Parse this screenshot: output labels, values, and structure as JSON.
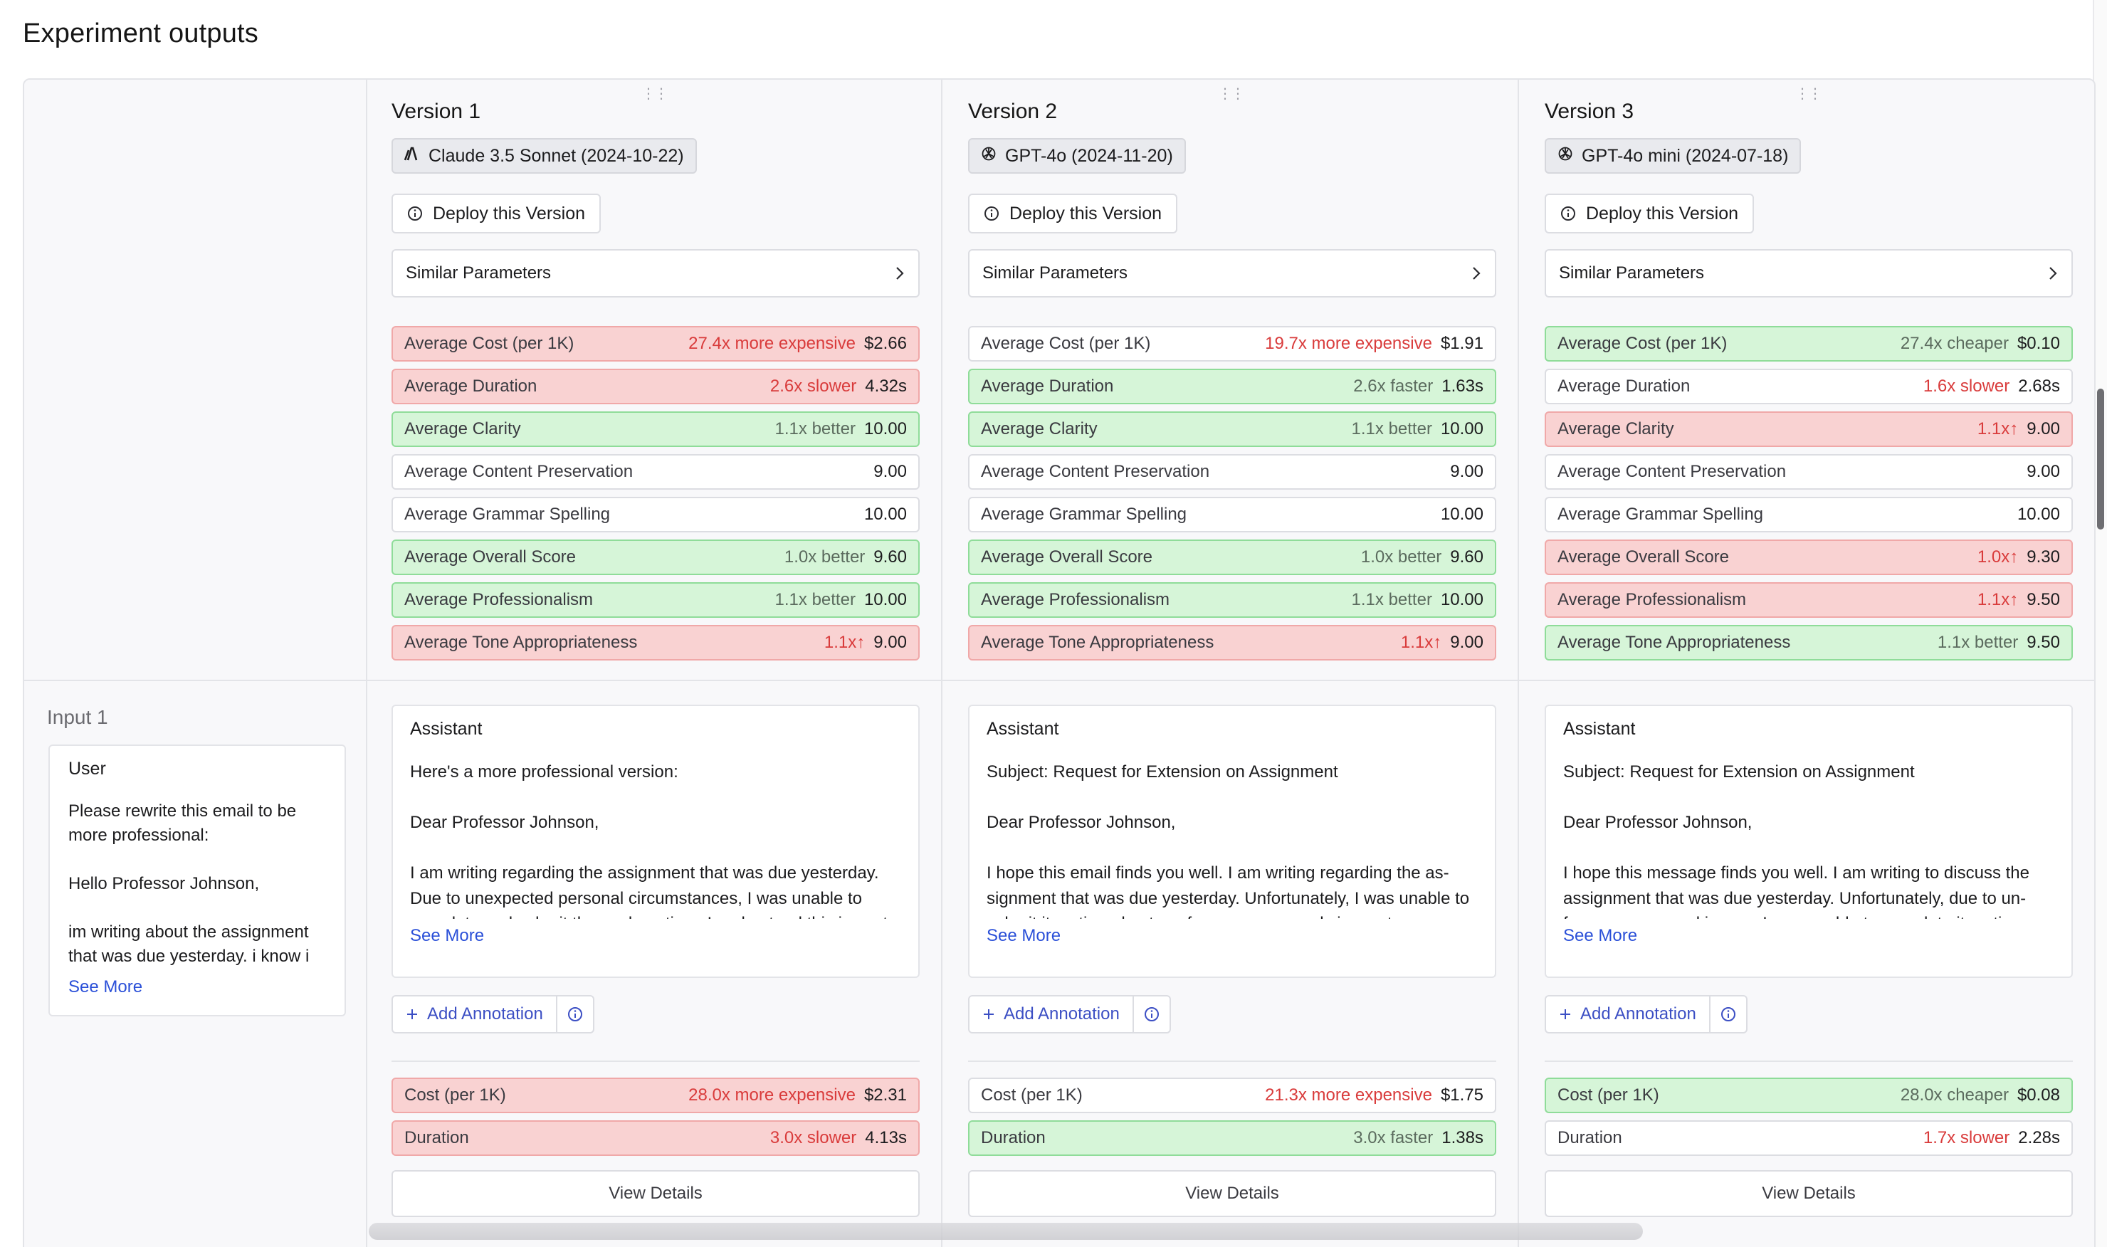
{
  "page": {
    "title": "Experiment outputs"
  },
  "input": {
    "label": "Input 1",
    "role": "User",
    "text": "Please rewrite this email to be more professional:\n\nHello Professor Johnson,\n\nim writing about the assignment that was due yesterday. i know i",
    "see_more": "See More"
  },
  "versions": [
    {
      "title": "Version 1",
      "model": "Claude 3.5 Sonnet (2024-10-22)",
      "model_icon": "anthropic-icon",
      "deploy_label": "Deploy this Version",
      "similar_label": "Similar Parameters",
      "metrics": [
        {
          "label": "Average Cost (per 1K)",
          "cmp": "27.4x more expensive",
          "value": "$2.66",
          "status": "red"
        },
        {
          "label": "Average Duration",
          "cmp": "2.6x slower",
          "value": "4.32s",
          "status": "red"
        },
        {
          "label": "Average Clarity",
          "cmp": "1.1x better",
          "value": "10.00",
          "status": "green"
        },
        {
          "label": "Average Content Preservation",
          "cmp": "",
          "value": "9.00",
          "status": "neutral"
        },
        {
          "label": "Average Grammar Spelling",
          "cmp": "",
          "value": "10.00",
          "status": "neutral"
        },
        {
          "label": "Average Overall Score",
          "cmp": "1.0x better",
          "value": "9.60",
          "status": "green"
        },
        {
          "label": "Average Professionalism",
          "cmp": "1.1x better",
          "value": "10.00",
          "status": "green"
        },
        {
          "label": "Average Tone Appropriateness",
          "cmp": "1.1x↑",
          "value": "9.00",
          "status": "red"
        }
      ],
      "output": {
        "role": "Assistant",
        "text": "Here's a more professional version:\n\nDear Professor Johnson,\n\nI am writing regarding the assignment that was due yesterday. Due to unexpected personal circumstances, I was unable to complete and submit the work on time. I understand this is past",
        "see_more": "See More",
        "annotation_label": "Add Annotation",
        "metrics": [
          {
            "label": "Cost (per 1K)",
            "cmp": "28.0x more expensive",
            "value": "$2.31",
            "status": "red"
          },
          {
            "label": "Duration",
            "cmp": "3.0x slower",
            "value": "4.13s",
            "status": "red"
          }
        ],
        "details_label": "View Details"
      }
    },
    {
      "title": "Version 2",
      "model": "GPT-4o (2024-11-20)",
      "model_icon": "openai-icon",
      "deploy_label": "Deploy this Version",
      "similar_label": "Similar Parameters",
      "metrics": [
        {
          "label": "Average Cost (per 1K)",
          "cmp": "19.7x more expensive",
          "value": "$1.91",
          "status": "neutral-red"
        },
        {
          "label": "Average Duration",
          "cmp": "2.6x faster",
          "value": "1.63s",
          "status": "green"
        },
        {
          "label": "Average Clarity",
          "cmp": "1.1x better",
          "value": "10.00",
          "status": "green"
        },
        {
          "label": "Average Content Preservation",
          "cmp": "",
          "value": "9.00",
          "status": "neutral"
        },
        {
          "label": "Average Grammar Spelling",
          "cmp": "",
          "value": "10.00",
          "status": "neutral"
        },
        {
          "label": "Average Overall Score",
          "cmp": "1.0x better",
          "value": "9.60",
          "status": "green"
        },
        {
          "label": "Average Professionalism",
          "cmp": "1.1x better",
          "value": "10.00",
          "status": "green"
        },
        {
          "label": "Average Tone Appropriateness",
          "cmp": "1.1x↑",
          "value": "9.00",
          "status": "red"
        }
      ],
      "output": {
        "role": "Assistant",
        "text": "Subject: Request for Extension on Assignment\n\nDear Professor Johnson,\n\nI hope this email finds you well. I am writing regarding the as-signment that was due yesterday. Unfortunately, I was unable to submit it on time due to unforeseen personal circumstances",
        "see_more": "See More",
        "annotation_label": "Add Annotation",
        "metrics": [
          {
            "label": "Cost (per 1K)",
            "cmp": "21.3x more expensive",
            "value": "$1.75",
            "status": "neutral-red"
          },
          {
            "label": "Duration",
            "cmp": "3.0x faster",
            "value": "1.38s",
            "status": "green"
          }
        ],
        "details_label": "View Details"
      }
    },
    {
      "title": "Version 3",
      "model": "GPT-4o mini (2024-07-18)",
      "model_icon": "openai-icon",
      "deploy_label": "Deploy this Version",
      "similar_label": "Similar Parameters",
      "metrics": [
        {
          "label": "Average Cost (per 1K)",
          "cmp": "27.4x cheaper",
          "value": "$0.10",
          "status": "green"
        },
        {
          "label": "Average Duration",
          "cmp": "1.6x slower",
          "value": "2.68s",
          "status": "neutral-red"
        },
        {
          "label": "Average Clarity",
          "cmp": "1.1x↑",
          "value": "9.00",
          "status": "red"
        },
        {
          "label": "Average Content Preservation",
          "cmp": "",
          "value": "9.00",
          "status": "neutral"
        },
        {
          "label": "Average Grammar Spelling",
          "cmp": "",
          "value": "10.00",
          "status": "neutral"
        },
        {
          "label": "Average Overall Score",
          "cmp": "1.0x↑",
          "value": "9.30",
          "status": "red"
        },
        {
          "label": "Average Professionalism",
          "cmp": "1.1x↑",
          "value": "9.50",
          "status": "red"
        },
        {
          "label": "Average Tone Appropriateness",
          "cmp": "1.1x better",
          "value": "9.50",
          "status": "green"
        }
      ],
      "output": {
        "role": "Assistant",
        "text": "Subject: Request for Extension on Assignment\n\nDear Professor Johnson,\n\nI hope this message finds you well. I am writing to discuss the assignment that was due yesterday. Unfortunately, due to un-foreseen personal issues, I was unable to complete it on time.",
        "see_more": "See More",
        "annotation_label": "Add Annotation",
        "metrics": [
          {
            "label": "Cost (per 1K)",
            "cmp": "28.0x cheaper",
            "value": "$0.08",
            "status": "green"
          },
          {
            "label": "Duration",
            "cmp": "1.7x slower",
            "value": "2.28s",
            "status": "neutral-red"
          }
        ],
        "details_label": "View Details"
      }
    }
  ],
  "colors": {
    "red_bg": "#f9d2d2",
    "green_bg": "#d6f5d8",
    "link": "#2b50d8",
    "compare_red": "#d93b3b"
  }
}
